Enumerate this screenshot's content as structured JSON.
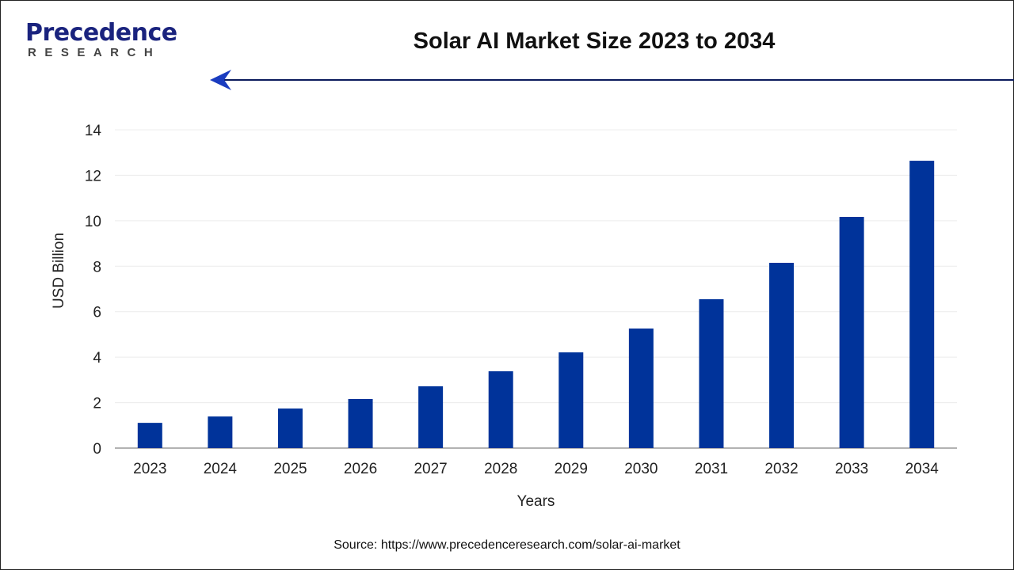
{
  "logo": {
    "line1": "Precedence",
    "line2": "RESEARCH"
  },
  "title": "Solar AI Market Size 2023 to 2034",
  "source": "Source: https://www.precedenceresearch.com/solar-ai-market",
  "colors": {
    "bar": "#00339a",
    "title": "#111111",
    "arrow": "#0a1a5c"
  },
  "chart_data": {
    "type": "bar",
    "title": "Solar AI Market Size 2023 to 2034",
    "xlabel": "Years",
    "ylabel": "USD Billion",
    "ylim": [
      0,
      14
    ],
    "yticks": [
      0,
      2,
      4,
      6,
      8,
      10,
      12,
      14
    ],
    "grid": true,
    "categories": [
      "2023",
      "2024",
      "2025",
      "2026",
      "2027",
      "2028",
      "2029",
      "2030",
      "2031",
      "2032",
      "2033",
      "2034"
    ],
    "values": [
      1.11,
      1.39,
      1.74,
      2.16,
      2.72,
      3.38,
      4.21,
      5.26,
      6.55,
      8.15,
      10.17,
      12.64
    ]
  }
}
